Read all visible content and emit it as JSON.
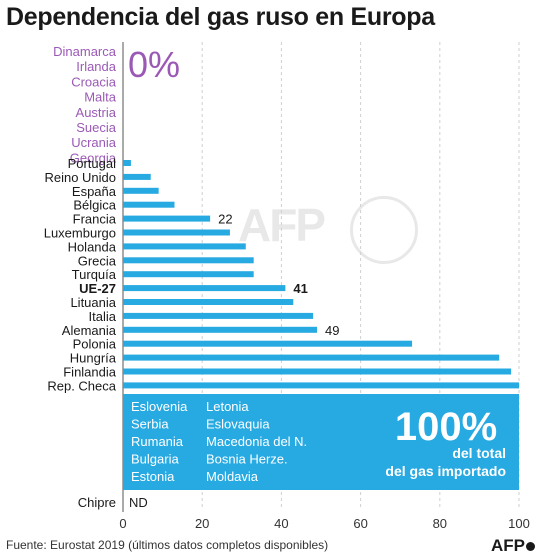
{
  "title": "Dependencia del gas ruso en Europa",
  "zero_group": {
    "big_label": "0%",
    "countries": [
      "Dinamarca",
      "Irlanda",
      "Croacia",
      "Malta",
      "Austria",
      "Suecia",
      "Ucrania",
      "Georgia"
    ]
  },
  "chart_data": {
    "type": "bar",
    "orientation": "horizontal",
    "categories": [
      "Portugal",
      "Reino Unido",
      "España",
      "Bélgica",
      "Francia",
      "Luxemburgo",
      "Holanda",
      "Grecia",
      "Turquía",
      "UE-27",
      "Lituania",
      "Italia",
      "Alemania",
      "Polonia",
      "Hungría",
      "Finlandia",
      "Rep. Checa"
    ],
    "values": [
      2,
      7,
      9,
      13,
      22,
      27,
      31,
      33,
      33,
      41,
      43,
      48,
      49,
      73,
      95,
      98,
      100
    ],
    "data_labels": {
      "Francia": "22",
      "UE-27": "41",
      "Alemania": "49"
    },
    "highlight": "UE-27",
    "xlim": [
      0,
      100
    ],
    "xticks": [
      "0",
      "20",
      "40",
      "60",
      "80",
      "100"
    ],
    "grid": true,
    "bar_color": "#27a9e1"
  },
  "full_dependence": {
    "big_label": "100%",
    "caption_line1": "del total",
    "caption_line2": "del gas importado",
    "countries_col1": [
      "Eslovenia",
      "Serbia",
      "Rumania",
      "Bulgaria",
      "Estonia"
    ],
    "countries_col2": [
      "Letonia",
      "Eslovaquia",
      "Macedonia del N.",
      "Bosnia Herze.",
      "Moldavia"
    ],
    "box_color": "#27a9e1"
  },
  "no_data": {
    "country": "Chipre",
    "label": "ND"
  },
  "source": "Fuente: Eurostat 2019 (últimos datos completos disponibles)",
  "logo": "AFP",
  "watermark": "AFP"
}
